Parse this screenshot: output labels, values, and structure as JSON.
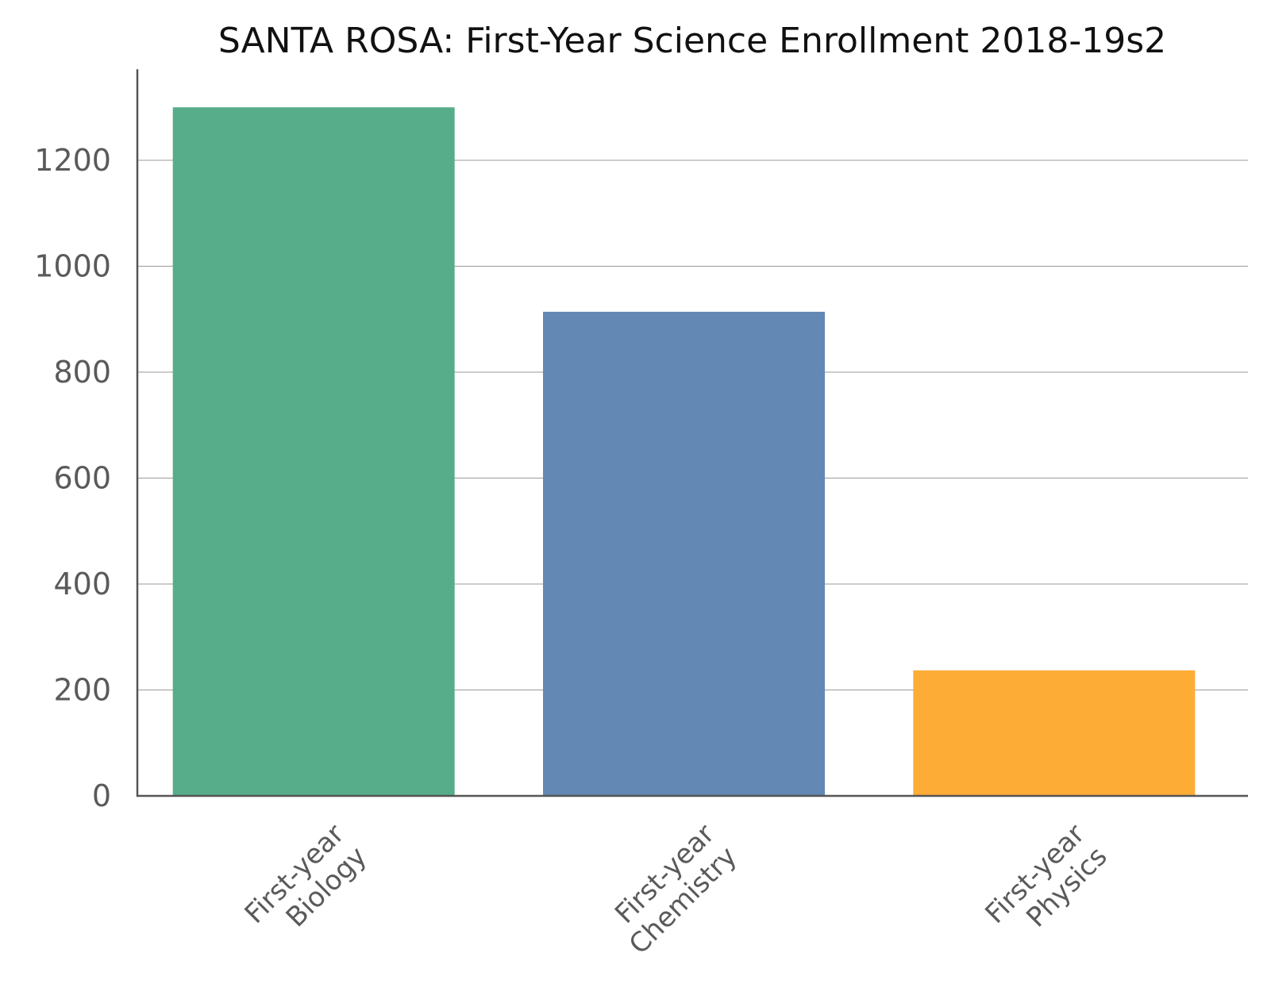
{
  "chart_data": {
    "type": "bar",
    "title": "SANTA ROSA: First-Year Science Enrollment 2018-19s2",
    "xlabel": "",
    "ylabel": "",
    "categories": [
      [
        "First-year",
        "Biology"
      ],
      [
        "First-year",
        "Chemistry"
      ],
      [
        "First-year",
        "Physics"
      ]
    ],
    "values": [
      1300,
      914,
      237
    ],
    "colors": [
      "#57ad89",
      "#6388b3",
      "#fdad35"
    ],
    "ylim": [
      0,
      1360
    ],
    "yticks": [
      0,
      200,
      400,
      600,
      800,
      1000,
      1200
    ],
    "grid": true,
    "legend": "none"
  }
}
